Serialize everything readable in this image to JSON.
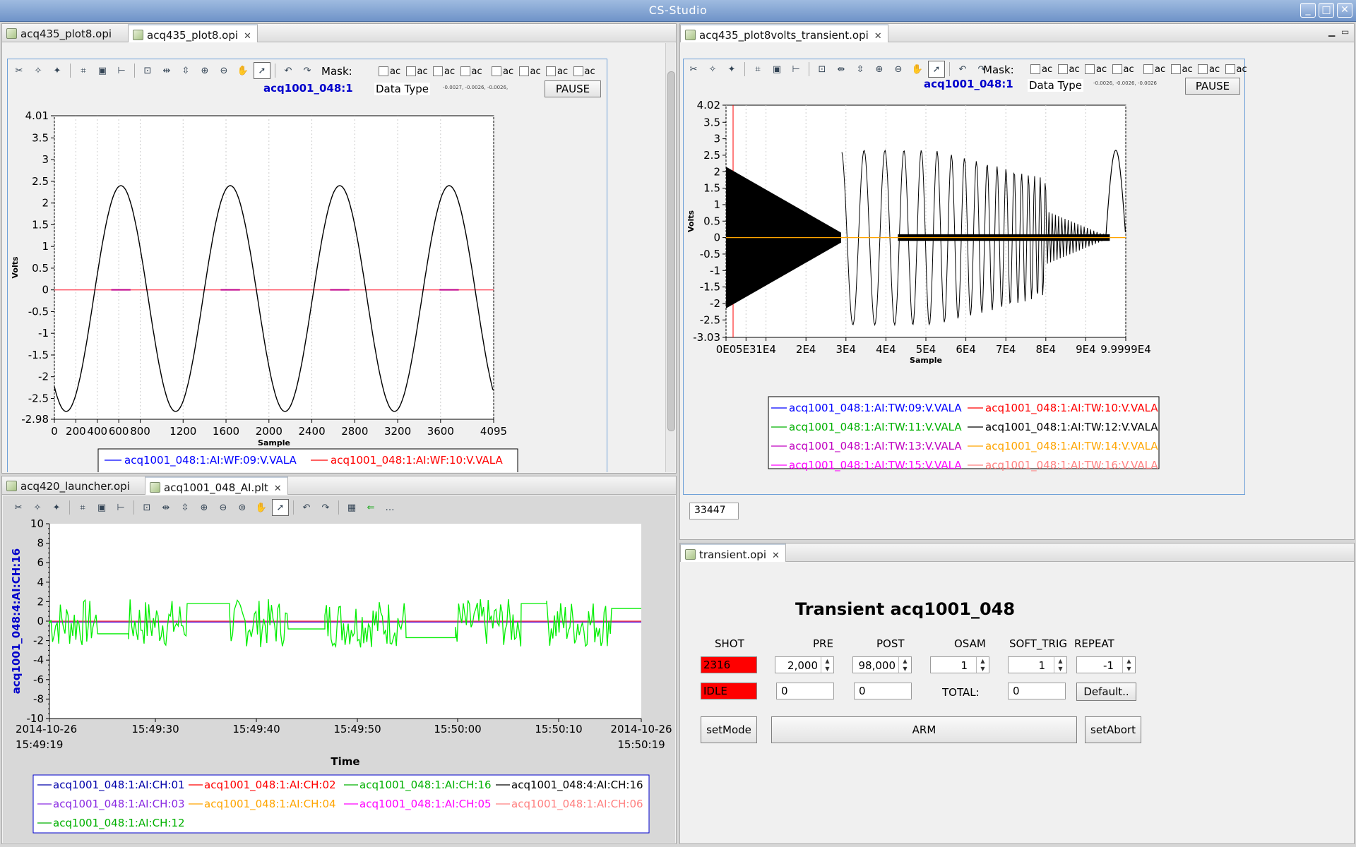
{
  "window": {
    "title": "CS-Studio"
  },
  "colors": {
    "red": "#ff0000",
    "blue": "#0000ff",
    "green": "#00ee00",
    "selection": "#0000cc"
  },
  "tl": {
    "tabs": [
      {
        "label": "acq435_plot8.opi"
      },
      {
        "label": "acq435_plot8.opi"
      }
    ],
    "mask_label": "Mask:",
    "mask_items": [
      "ac",
      "ac",
      "ac",
      "ac",
      "ac",
      "ac",
      "ac",
      "ac"
    ],
    "pv_name": "acq1001_048:1",
    "data_type_label": "Data Type",
    "values_text": "-0.0027, -0.0026, -0.0026,",
    "pause_label": "PAUSE",
    "ylabel": "Volts",
    "xlabel": "Sample",
    "legend": [
      "acq1001_048:1:AI:WF:09:V.VALA",
      "acq1001_048:1:AI:WF:10:V.VALA"
    ]
  },
  "tr": {
    "tabs": [
      {
        "label": "acq435_plot8volts_transient.opi"
      }
    ],
    "mask_label": "Mask:",
    "mask_items": [
      "ac",
      "ac",
      "ac",
      "ac",
      "ac",
      "ac",
      "ac",
      "ac"
    ],
    "pv_name": "acq1001_048:1",
    "data_type_label": "Data Type",
    "values_text": "-0.0026, -0.0026, -0.0026",
    "pause_label": "PAUSE",
    "ylabel": "Volts",
    "xlabel": "Sample",
    "legend": [
      "acq1001_048:1:AI:TW:09:V.VALA",
      "acq1001_048:1:AI:TW:10:V.VALA",
      "acq1001_048:1:AI:TW:11:V.VALA",
      "acq1001_048:1:AI:TW:12:V.VALA",
      "acq1001_048:1:AI:TW:13:V.VALA",
      "acq1001_048:1:AI:TW:14:V.VALA",
      "acq1001_048:1:AI:TW:15:V.VALA",
      "acq1001_048:1:AI:TW:16:V.VALA"
    ],
    "counter": "33447"
  },
  "bl": {
    "tabs": [
      {
        "label": "acq420_launcher.opi"
      },
      {
        "label": "acq1001_048_AI.plt"
      }
    ],
    "ylabel": "acq1001_048:4:AI:CH:16",
    "xlabel": "Time",
    "legend": [
      "acq1001_048:1:AI:CH:01",
      "acq1001_048:1:AI:CH:02",
      "acq1001_048:1:AI:CH:16",
      "acq1001_048:4:AI:CH:16",
      "acq1001_048:1:AI:CH:03",
      "acq1001_048:1:AI:CH:04",
      "acq1001_048:1:AI:CH:05",
      "acq1001_048:1:AI:CH:06",
      "acq1001_048:1:AI:CH:12"
    ]
  },
  "br": {
    "tabs": [
      {
        "label": "transient.opi"
      }
    ],
    "title": "Transient acq1001_048",
    "headers": {
      "shot": "SHOT",
      "pre": "PRE",
      "post": "POST",
      "osam": "OSAM",
      "soft_trig": "SOFT_TRIG",
      "repeat": "REPEAT"
    },
    "shot": "2316",
    "pre": "2,000",
    "post": "98,000",
    "osam": "1",
    "soft_trig": "1",
    "repeat": "-1",
    "state": "IDLE",
    "pre_actual": "0",
    "post_actual": "0",
    "total_label": "TOTAL:",
    "total": "0",
    "default_label": "Default..",
    "setmode_label": "setMode",
    "arm_label": "ARM",
    "setabort_label": "setAbort"
  },
  "chart_data": [
    {
      "type": "line",
      "title": "",
      "xlabel": "Sample",
      "ylabel": "Volts",
      "xlim": [
        0,
        4095
      ],
      "ylim": [
        -2.98,
        4.01
      ],
      "x_ticks": [
        "0",
        "200",
        "400",
        "600",
        "800",
        "1200",
        "1600",
        "2000",
        "2400",
        "2800",
        "3200",
        "3600",
        "4095"
      ],
      "y_ticks": [
        "4.01",
        "3.5",
        "3",
        "2.5",
        "2",
        "1.5",
        "1",
        "0.5",
        "0",
        "-0.5",
        "-1",
        "-1.5",
        "-2",
        "-2.5",
        "-2.98"
      ],
      "series": [
        {
          "name": "acq1001_048:1:AI:WF:09:V.VALA",
          "color": "#000000",
          "waveform": "sine",
          "amplitude": 2.6,
          "period_samples": 1020,
          "peak_samples": [
            620,
            1640,
            2660,
            3680
          ]
        },
        {
          "name": "acq1001_048:1:AI:WF:10:V.VALA",
          "color": "#ff0000",
          "values_const": 0
        }
      ]
    },
    {
      "type": "line",
      "title": "",
      "xlabel": "Sample",
      "ylabel": "Volts",
      "xlim": [
        0,
        99999
      ],
      "ylim": [
        -3.03,
        4.02
      ],
      "x_ticks": [
        "0E0",
        "5E3",
        "1E4",
        "2E4",
        "3E4",
        "4E4",
        "5E4",
        "6E4",
        "7E4",
        "8E4",
        "9E4",
        "9.9999E4"
      ],
      "y_ticks": [
        "4.02",
        "3.5",
        "3",
        "2.5",
        "2",
        "1.5",
        "1",
        "0.5",
        "0",
        "-0.5",
        "-1",
        "-1.5",
        "-2",
        "-2.5",
        "-3.03"
      ],
      "series": [
        {
          "name": "acq1001_048:1:AI:TW:12:V.VALA",
          "color": "#000000",
          "waveform": "chirp"
        },
        {
          "name": "acq1001_048:1:AI:TW:14:V.VALA",
          "color": "#ffa500",
          "values_const": 0
        }
      ]
    },
    {
      "type": "line",
      "title": "",
      "xlabel": "Time",
      "ylabel": "acq1001_048:4:AI:CH:16",
      "ylim": [
        -10,
        10
      ],
      "x_ticks": [
        "2014-10-26\n15:49:19",
        "15:49:30",
        "15:49:40",
        "15:49:50",
        "15:50:00",
        "15:50:10",
        "2014-10-26\n15:50:19"
      ],
      "y_ticks": [
        "10",
        "8",
        "6",
        "4",
        "2",
        "0",
        "-2",
        "-4",
        "-6",
        "-8",
        "-10"
      ],
      "series": [
        {
          "name": "acq1001_048:1:AI:CH:16",
          "color": "#00ee00",
          "waveform": "noisy-bursts"
        },
        {
          "name": "acq1001_048:1:AI:CH:02",
          "color": "#ff0000",
          "values_const": 0
        },
        {
          "name": "acq1001_048:1:AI:CH:03",
          "color": "#8a2be2",
          "values_const": 0
        }
      ]
    }
  ]
}
